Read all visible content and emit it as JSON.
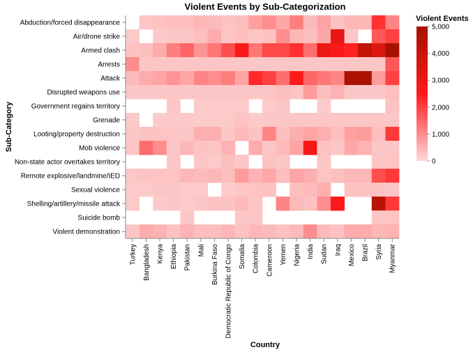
{
  "chart_data": {
    "type": "heatmap",
    "title": "Violent Events by Sub-Categorization",
    "xlabel": "Country",
    "ylabel": "Sub-Category",
    "x": [
      "Turkey",
      "Bangladesh",
      "Kenya",
      "Ethiopia",
      "Pakistan",
      "Mali",
      "Burkina Faso",
      "Democratic Republic of Congo",
      "Somalia",
      "Colombia",
      "Cameroon",
      "Yemen",
      "Nigeria",
      "India",
      "Sudan",
      "Iraq",
      "Mexico",
      "Brazil",
      "Syria",
      "Myanmar"
    ],
    "y": [
      "Abduction/forced disappearance",
      "Air/drone strike",
      "Armed clash",
      "Arrests",
      "Attack",
      "Disrupted weapons use",
      "Government regains territory",
      "Grenade",
      "Looting/property destruction",
      "Mob violence",
      "Non-state actor overtakes territory",
      "Remote explosive/landmine/IED",
      "Sexual violence",
      "Shelling/artillery/missile attack",
      "Suicide bomb",
      "Violent demonstration"
    ],
    "values": [
      [
        null,
        250,
        300,
        350,
        350,
        450,
        400,
        300,
        350,
        750,
        1000,
        650,
        1200,
        400,
        700,
        300,
        450,
        450,
        2200,
        1100
      ],
      [
        200,
        null,
        200,
        250,
        250,
        350,
        600,
        250,
        350,
        250,
        300,
        1000,
        450,
        350,
        650,
        3100,
        250,
        null,
        1700,
        2000
      ],
      [
        300,
        350,
        600,
        1200,
        1500,
        900,
        1300,
        1800,
        2600,
        1300,
        1900,
        1900,
        2200,
        1400,
        3000,
        2600,
        2400,
        4200,
        3500,
        4900
      ],
      [
        1000,
        250,
        250,
        250,
        250,
        250,
        250,
        250,
        250,
        250,
        250,
        250,
        250,
        250,
        250,
        250,
        250,
        250,
        250,
        1700
      ],
      [
        400,
        600,
        700,
        900,
        650,
        1100,
        1000,
        1200,
        700,
        2300,
        2000,
        1400,
        2500,
        1500,
        1300,
        1100,
        4800,
        4900,
        800,
        2000
      ],
      [
        250,
        250,
        250,
        250,
        250,
        250,
        250,
        250,
        250,
        250,
        250,
        350,
        300,
        800,
        350,
        500,
        250,
        250,
        250,
        350
      ],
      [
        null,
        null,
        null,
        250,
        null,
        200,
        200,
        200,
        200,
        null,
        200,
        250,
        null,
        null,
        200,
        null,
        null,
        null,
        null,
        300
      ],
      [
        200,
        null,
        200,
        200,
        200,
        200,
        200,
        200,
        300,
        200,
        250,
        250,
        250,
        250,
        250,
        250,
        250,
        250,
        250,
        250
      ],
      [
        250,
        300,
        300,
        250,
        250,
        550,
        550,
        250,
        400,
        300,
        1100,
        350,
        550,
        700,
        550,
        350,
        750,
        800,
        350,
        2100
      ],
      [
        250,
        1400,
        1000,
        250,
        450,
        300,
        250,
        500,
        null,
        600,
        250,
        400,
        700,
        2800,
        300,
        250,
        650,
        500,
        250,
        250
      ],
      [
        null,
        null,
        null,
        250,
        null,
        250,
        200,
        350,
        250,
        null,
        300,
        250,
        null,
        null,
        250,
        null,
        null,
        null,
        250,
        300
      ],
      [
        250,
        300,
        300,
        300,
        450,
        400,
        450,
        350,
        800,
        500,
        650,
        350,
        700,
        550,
        300,
        350,
        450,
        450,
        1800,
        2100
      ],
      [
        200,
        200,
        250,
        250,
        200,
        200,
        null,
        200,
        250,
        300,
        300,
        null,
        350,
        400,
        550,
        null,
        300,
        300,
        300,
        250
      ],
      [
        200,
        null,
        200,
        250,
        200,
        250,
        300,
        300,
        400,
        250,
        null,
        1100,
        400,
        300,
        1000,
        2600,
        null,
        null,
        4500,
        2100
      ],
      [
        null,
        null,
        null,
        null,
        250,
        null,
        null,
        null,
        250,
        250,
        null,
        null,
        null,
        null,
        null,
        null,
        null,
        null,
        250,
        300
      ],
      [
        250,
        600,
        500,
        300,
        500,
        350,
        350,
        450,
        300,
        450,
        400,
        300,
        400,
        1000,
        400,
        300,
        600,
        600,
        450,
        500
      ]
    ],
    "legend": {
      "title": "Violent Events",
      "domain": [
        0,
        5000
      ],
      "ticks": [
        "0",
        "1,000",
        "2,000",
        "3,000",
        "4,000",
        "5,000"
      ],
      "placement": "right"
    },
    "colors": {
      "low": "#fdd9d9",
      "mid": "#ff1a1a",
      "high": "#a51200",
      "missing": "#ffffff"
    }
  }
}
